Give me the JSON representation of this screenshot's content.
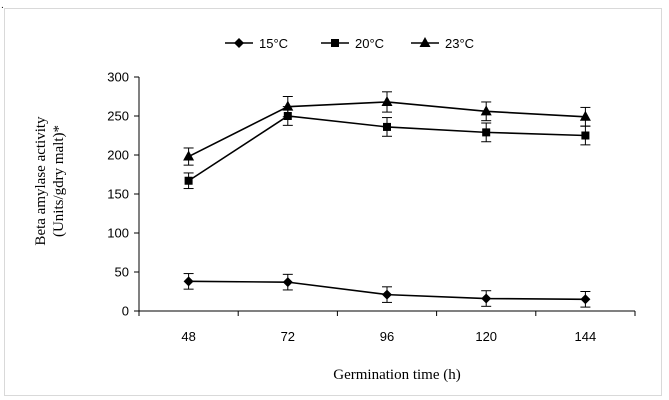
{
  "stray_mark": ".",
  "chart_data": {
    "type": "line",
    "title": "",
    "xlabel": "Germination time (h)",
    "ylabel_line1": "Beta amylase activity",
    "ylabel_line2": "(Units/gdry malt)*",
    "x": [
      48,
      72,
      96,
      120,
      144
    ],
    "x_tick_labels": [
      "48",
      "72",
      "96",
      "120",
      "144"
    ],
    "ylim": [
      0,
      300
    ],
    "y_ticks": [
      0,
      50,
      100,
      150,
      200,
      250,
      300
    ],
    "grid": false,
    "legend_position": "top-center",
    "series": [
      {
        "name": "15°C",
        "marker": "diamond",
        "values": [
          38,
          37,
          21,
          16,
          15
        ],
        "errors": [
          10,
          10,
          10,
          10,
          10
        ]
      },
      {
        "name": "20°C",
        "marker": "square",
        "values": [
          167,
          250,
          236,
          229,
          225
        ],
        "errors": [
          10,
          12,
          12,
          12,
          12
        ]
      },
      {
        "name": "23°C",
        "marker": "triangle",
        "values": [
          198,
          262,
          268,
          256,
          249
        ],
        "errors": [
          11,
          13,
          13,
          12,
          12
        ]
      }
    ],
    "colors": {
      "line": "#000000",
      "axis": "#000000",
      "frame": "#d9d9d9"
    }
  }
}
